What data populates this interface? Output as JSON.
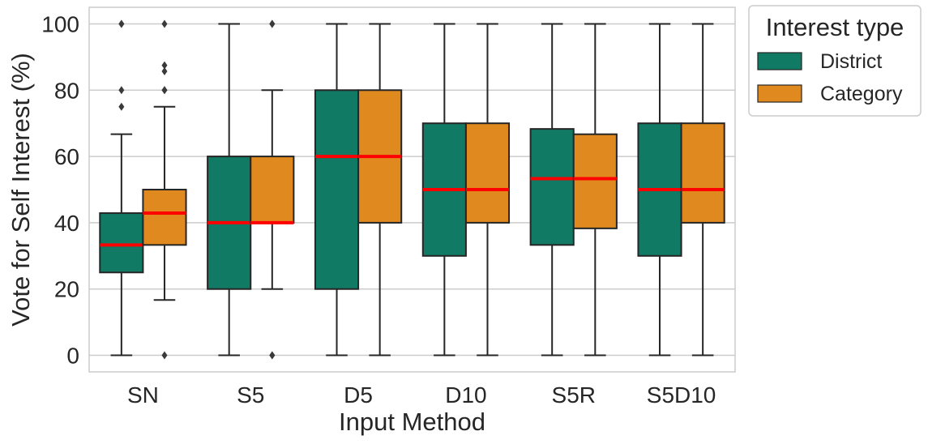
{
  "chart_data": {
    "type": "box",
    "xlabel": "Input Method",
    "ylabel": "Vote for Self Interest (%)",
    "ylim": [
      -5,
      105
    ],
    "yticks": [
      0,
      20,
      40,
      60,
      80,
      100
    ],
    "grid": true,
    "categories": [
      "SN",
      "S5",
      "D5",
      "D10",
      "S5R",
      "S5D10"
    ],
    "legend": {
      "title": "Interest type",
      "placement": "outside-right-top"
    },
    "series": [
      {
        "name": "District",
        "color": "#117a65",
        "boxes": [
          {
            "whisker_low": 0,
            "q1": 25,
            "median": 33.3,
            "q3": 42.9,
            "whisker_high": 66.7,
            "outliers": [
              75,
              80,
              100,
              100
            ]
          },
          {
            "whisker_low": 0,
            "q1": 20,
            "median": 40,
            "q3": 60,
            "whisker_high": 100,
            "outliers": []
          },
          {
            "whisker_low": 0,
            "q1": 20,
            "median": 60,
            "q3": 80,
            "whisker_high": 100,
            "outliers": []
          },
          {
            "whisker_low": 0,
            "q1": 30,
            "median": 50,
            "q3": 70,
            "whisker_high": 100,
            "outliers": []
          },
          {
            "whisker_low": 0,
            "q1": 33.3,
            "median": 53.3,
            "q3": 68.3,
            "whisker_high": 100,
            "outliers": []
          },
          {
            "whisker_low": 0,
            "q1": 30,
            "median": 50,
            "q3": 70,
            "whisker_high": 100,
            "outliers": []
          }
        ]
      },
      {
        "name": "Category",
        "color": "#e0891e",
        "boxes": [
          {
            "whisker_low": 16.7,
            "q1": 33.3,
            "median": 42.9,
            "q3": 50,
            "whisker_high": 75,
            "outliers": [
              0,
              80,
              80,
              85.7,
              87.5,
              100
            ]
          },
          {
            "whisker_low": 20,
            "q1": 40,
            "median": 40,
            "q3": 60,
            "whisker_high": 80,
            "outliers": [
              0,
              0,
              100,
              100
            ]
          },
          {
            "whisker_low": 0,
            "q1": 40,
            "median": 60,
            "q3": 80,
            "whisker_high": 100,
            "outliers": []
          },
          {
            "whisker_low": 0,
            "q1": 40,
            "median": 50,
            "q3": 70,
            "whisker_high": 100,
            "outliers": []
          },
          {
            "whisker_low": 0,
            "q1": 38.3,
            "median": 53.3,
            "q3": 66.7,
            "whisker_high": 100,
            "outliers": []
          },
          {
            "whisker_low": 0,
            "q1": 40,
            "median": 50,
            "q3": 70,
            "whisker_high": 100,
            "outliers": []
          }
        ]
      }
    ],
    "median_color": "#ff0000"
  }
}
